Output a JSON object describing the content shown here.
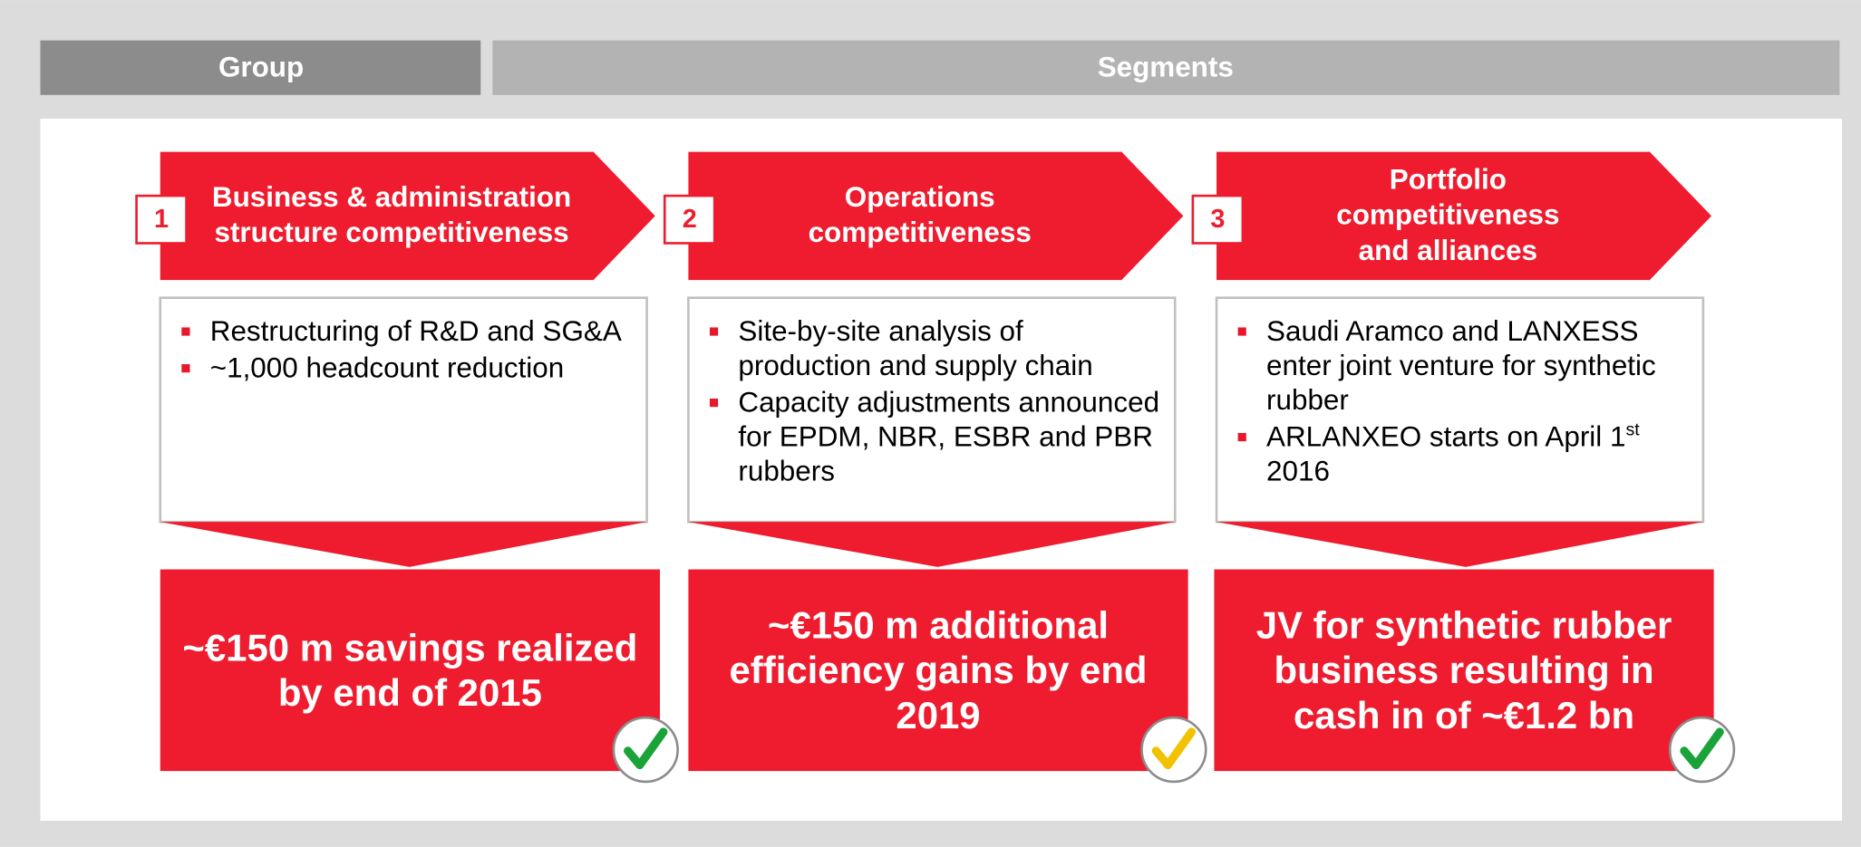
{
  "header": {
    "group": "Group",
    "segments": "Segments"
  },
  "pillars": [
    {
      "number": "1",
      "title": [
        "Business & administration",
        "structure competitiveness"
      ],
      "bullets": [
        "Restructuring of R&D and SG&A",
        "~1,000 headcount reduction"
      ],
      "result": "~€150 m savings realized by end of 2015",
      "check_color": "#1aa339"
    },
    {
      "number": "2",
      "title": [
        "Operations",
        "competitiveness"
      ],
      "bullets": [
        "Site-by-site analysis of production and supply chain",
        "Capacity adjustments announced for EPDM, NBR, ESBR and PBR rubbers"
      ],
      "result": "~€150 m additional efficiency gains by end 2019",
      "check_color": "#f2c200"
    },
    {
      "number": "3",
      "title": [
        "Portfolio",
        "competitiveness",
        "and alliances"
      ],
      "bullets": [
        "Saudi Aramco and LANXESS enter joint venture for synthetic rubber",
        {
          "text": "ARLANXEO starts on April 1",
          "superscript": "st",
          "text_after": "2016"
        }
      ],
      "result": "JV for synthetic rubber business resulting in cash in of ~€1.2 bn",
      "check_color": "#1aa339"
    }
  ]
}
